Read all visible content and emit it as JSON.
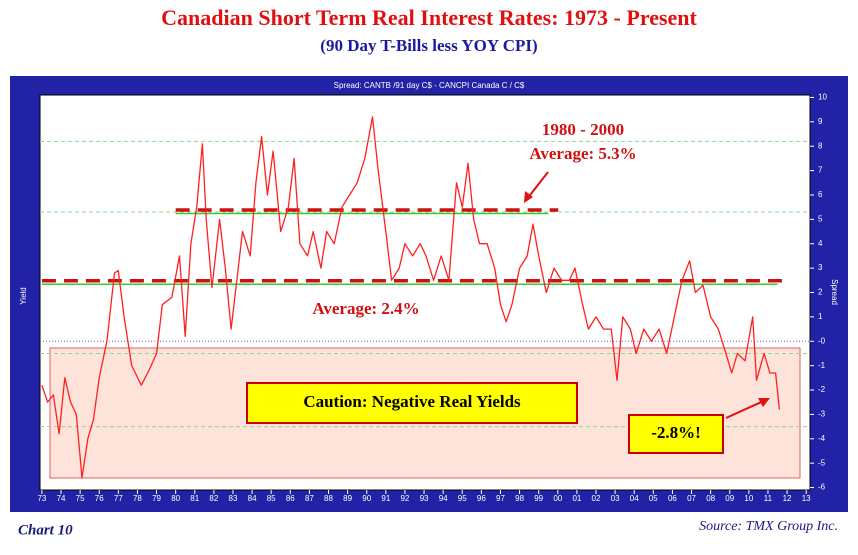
{
  "chart_data": {
    "type": "line",
    "title": "Canadian Short Term Real Interest Rates: 1973 - Present",
    "subtitle": "(90 Day T-Bills less YOY CPI)",
    "inner_title": "Spread: CANTB /91 day C$  -  CANCPI Canada C / C$",
    "ylabel_left": "Yield",
    "ylabel_right": "Spread",
    "footer_left": "Chart 10",
    "footer_right": "Source: TMX Group Inc.",
    "annotations": {
      "period": "1980 - 2000",
      "avg_high": "Average: 5.3%",
      "avg_low": "Average: 2.4%",
      "caution": "Caution: Negative Real Yields",
      "last": "-2.8%!"
    },
    "averages": [
      {
        "value": 5.3,
        "x": [
          1980,
          1999.5
        ]
      },
      {
        "value": 2.4,
        "x": [
          1973,
          2011.5
        ]
      }
    ],
    "gridlines": [
      8.2,
      5.3,
      -0.5,
      -3.5
    ],
    "color": "#ff2020",
    "xlim": [
      1972.9,
      2013.2
    ],
    "ylim": [
      -6.1,
      10.1
    ],
    "xticks": [
      {
        "value": 1973,
        "label": "73"
      },
      {
        "value": 1974,
        "label": "74"
      },
      {
        "value": 1975,
        "label": "75"
      },
      {
        "value": 1976,
        "label": "76"
      },
      {
        "value": 1977,
        "label": "77"
      },
      {
        "value": 1978,
        "label": "78"
      },
      {
        "value": 1979,
        "label": "79"
      },
      {
        "value": 1980,
        "label": "80"
      },
      {
        "value": 1981,
        "label": "81"
      },
      {
        "value": 1982,
        "label": "82"
      },
      {
        "value": 1983,
        "label": "83"
      },
      {
        "value": 1984,
        "label": "84"
      },
      {
        "value": 1985,
        "label": "85"
      },
      {
        "value": 1986,
        "label": "86"
      },
      {
        "value": 1987,
        "label": "87"
      },
      {
        "value": 1988,
        "label": "88"
      },
      {
        "value": 1989,
        "label": "89"
      },
      {
        "value": 1990,
        "label": "90"
      },
      {
        "value": 1991,
        "label": "91"
      },
      {
        "value": 1992,
        "label": "92"
      },
      {
        "value": 1993,
        "label": "93"
      },
      {
        "value": 1994,
        "label": "94"
      },
      {
        "value": 1995,
        "label": "95"
      },
      {
        "value": 1996,
        "label": "96"
      },
      {
        "value": 1997,
        "label": "97"
      },
      {
        "value": 1998,
        "label": "98"
      },
      {
        "value": 1999,
        "label": "99"
      },
      {
        "value": 2000,
        "label": "00"
      },
      {
        "value": 2001,
        "label": "01"
      },
      {
        "value": 2002,
        "label": "02"
      },
      {
        "value": 2003,
        "label": "03"
      },
      {
        "value": 2004,
        "label": "04"
      },
      {
        "value": 2005,
        "label": "05"
      },
      {
        "value": 2006,
        "label": "06"
      },
      {
        "value": 2007,
        "label": "07"
      },
      {
        "value": 2008,
        "label": "08"
      },
      {
        "value": 2009,
        "label": "09"
      },
      {
        "value": 2010,
        "label": "10"
      },
      {
        "value": 2011,
        "label": "11"
      },
      {
        "value": 2012,
        "label": "12"
      },
      {
        "value": 2013,
        "label": "13"
      }
    ],
    "yticks": [
      10,
      9,
      8,
      7,
      6,
      5,
      4,
      3,
      2,
      1,
      {
        "value": 0,
        "label": "-0"
      },
      -1,
      -2,
      -3,
      -4,
      -5,
      -6
    ],
    "x": [
      1973.0,
      1973.3,
      1973.6,
      1973.9,
      1974.2,
      1974.5,
      1974.8,
      1975.1,
      1975.4,
      1975.7,
      1976.0,
      1976.4,
      1976.8,
      1977.0,
      1977.3,
      1977.7,
      1978.2,
      1978.6,
      1979.0,
      1979.3,
      1979.8,
      1980.2,
      1980.5,
      1980.8,
      1981.1,
      1981.4,
      1981.6,
      1981.9,
      1982.3,
      1982.6,
      1982.9,
      1983.2,
      1983.5,
      1983.9,
      1984.2,
      1984.5,
      1984.8,
      1985.1,
      1985.5,
      1985.9,
      1986.2,
      1986.5,
      1986.9,
      1987.2,
      1987.6,
      1987.9,
      1988.3,
      1988.7,
      1989.1,
      1989.5,
      1989.9,
      1990.3,
      1990.6,
      1991.0,
      1991.3,
      1991.7,
      1992.0,
      1992.4,
      1992.8,
      1993.1,
      1993.5,
      1993.9,
      1994.3,
      1994.7,
      1995.0,
      1995.3,
      1995.6,
      1995.9,
      1996.3,
      1996.7,
      1997.0,
      1997.3,
      1997.6,
      1998.0,
      1998.4,
      1998.7,
      1999.0,
      1999.4,
      1999.8,
      2000.2,
      2000.6,
      2000.9,
      2001.3,
      2001.6,
      2002.0,
      2002.4,
      2002.8,
      2003.1,
      2003.4,
      2003.8,
      2004.1,
      2004.5,
      2004.9,
      2005.3,
      2005.7,
      2006.1,
      2006.5,
      2006.9,
      2007.2,
      2007.6,
      2008.0,
      2008.4,
      2008.8,
      2009.1,
      2009.4,
      2009.8,
      2010.2,
      2010.4,
      2010.8,
      2011.1,
      2011.4,
      2011.6
    ],
    "values": [
      -1.8,
      -2.5,
      -2.2,
      -3.8,
      -1.5,
      -2.5,
      -3.0,
      -5.6,
      -4.0,
      -3.2,
      -1.5,
      0,
      2.8,
      2.9,
      1.0,
      -1.0,
      -1.8,
      -1.2,
      -0.5,
      1.5,
      1.8,
      3.5,
      0.2,
      4.0,
      5.5,
      8.1,
      5.0,
      2.2,
      5.0,
      3.0,
      0.5,
      2.5,
      4.5,
      3.5,
      6.5,
      8.4,
      6.0,
      7.8,
      4.5,
      5.5,
      7.5,
      4.0,
      3.5,
      4.5,
      3.0,
      4.5,
      4.0,
      5.5,
      6.0,
      6.5,
      7.5,
      9.2,
      7.0,
      4.5,
      2.5,
      3.0,
      4.0,
      3.5,
      4.0,
      3.5,
      2.5,
      3.5,
      2.5,
      6.5,
      5.5,
      7.3,
      5.0,
      4.0,
      4.0,
      3.0,
      1.5,
      0.8,
      1.5,
      3.0,
      3.5,
      4.8,
      3.5,
      2.0,
      3.0,
      2.5,
      2.5,
      3.0,
      1.5,
      0.5,
      1.0,
      0.5,
      0.5,
      -1.6,
      1.0,
      0.5,
      -0.5,
      0.5,
      0,
      0.5,
      -0.5,
      1.0,
      2.5,
      3.3,
      2.0,
      2.3,
      1.0,
      0.5,
      -0.5,
      -1.3,
      -0.5,
      -0.8,
      1.0,
      -1.6,
      -0.5,
      -1.3,
      -1.3,
      -2.8
    ]
  }
}
